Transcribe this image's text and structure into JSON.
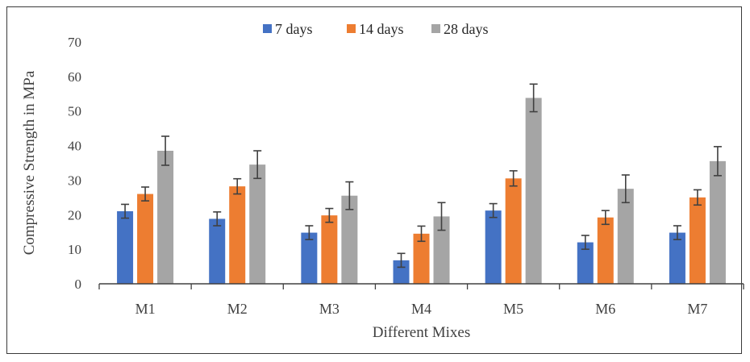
{
  "chart_data": {
    "type": "bar",
    "title": "",
    "xlabel": "Different Mixes",
    "ylabel": "Compressive Strength in MPa",
    "ylim": [
      0,
      70
    ],
    "yticks": [
      "0",
      "10",
      "20",
      "30",
      "40",
      "50",
      "60",
      "70"
    ],
    "grid": false,
    "legend_position": "top",
    "categories": [
      "M1",
      "M2",
      "M3",
      "M4",
      "M5",
      "M6",
      "M7"
    ],
    "series": [
      {
        "name": "7 days",
        "color": "#4472C4",
        "values": [
          21,
          18.8,
          14.8,
          6.8,
          21.2,
          12,
          14.8
        ],
        "errors": [
          2,
          2,
          2,
          2,
          2,
          2,
          2
        ]
      },
      {
        "name": "14 days",
        "color": "#ED7D31",
        "values": [
          26,
          28.2,
          19.8,
          14.5,
          30.5,
          19.2,
          25
        ],
        "errors": [
          2,
          2.2,
          2,
          2.2,
          2.2,
          2,
          2.2
        ]
      },
      {
        "name": "28 days",
        "color": "#A5A5A5",
        "values": [
          38.5,
          34.5,
          25.5,
          19.5,
          53.8,
          27.5,
          35.5
        ],
        "errors": [
          4.2,
          4,
          4,
          4,
          4,
          4,
          4.2
        ]
      }
    ]
  }
}
